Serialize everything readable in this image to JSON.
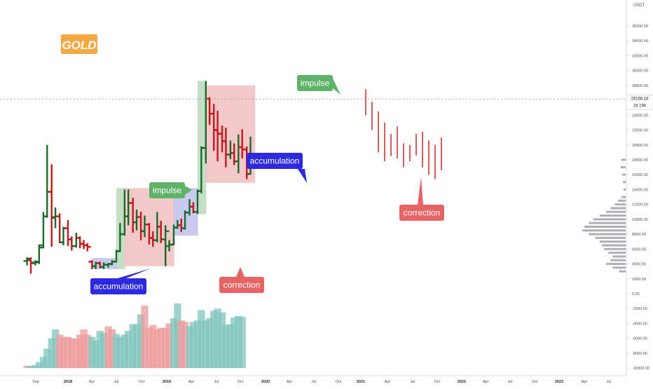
{
  "symbol_badge": "GOLD",
  "price_axis": {
    "unit": "USDT",
    "current_price": "26168.16",
    "countdown": "2d 19h",
    "ticks": [
      "36000.00",
      "34000.00",
      "32000.00",
      "30000.00",
      "28000.00",
      "26000.00",
      "24000.00",
      "22000.00",
      "20000.00",
      "18000.00",
      "16000.00",
      "14000.00",
      "12000.00",
      "10000.00",
      "8000.00",
      "6000.00",
      "4000.00",
      "2000.00",
      "0.00",
      "-2000.00",
      "-4000.00",
      "-6000.00",
      "-8000.00",
      "-10000.00"
    ]
  },
  "time_axis": {
    "ticks": [
      "Sep",
      "2018",
      "Apr",
      "Jul",
      "Oct",
      "2019",
      "Apr",
      "Jul",
      "Oct",
      "2020",
      "Apr",
      "Jul",
      "Oct",
      "2021",
      "Apr",
      "Jul",
      "Oct",
      "2022",
      "Apr",
      "Jul",
      "Oct",
      "2023",
      "Apr",
      "Jul"
    ]
  },
  "annotations": {
    "impulse": "impulse",
    "accumulation": "accumulation",
    "correction": "correction"
  },
  "colors": {
    "up": "#1a6b2a",
    "down": "#c8161b",
    "impulse_zone": "#9dc9a0",
    "correction_zone": "#eba3a3",
    "accumulation_zone": "#a3a6e6",
    "label_impulse": "#5fb369",
    "label_accumulation": "#2d29e0",
    "label_correction": "#e86464",
    "badge": "#f5a742"
  },
  "chart_data": {
    "type": "ohlc",
    "price_unit": "USDT",
    "ylim": [
      -10000,
      37500
    ],
    "bars": [
      {
        "x": "2017-08-01",
        "open": 4400,
        "high": 4900,
        "low": 3800,
        "close": 4700
      },
      {
        "x": "2017-08-15",
        "open": 4500,
        "high": 4900,
        "low": 2700,
        "close": 4100
      },
      {
        "x": "2017-09-01",
        "open": 4200,
        "high": 4500,
        "low": 3800,
        "close": 4300
      },
      {
        "x": "2017-09-15",
        "open": 4200,
        "high": 6600,
        "low": 4000,
        "close": 6500
      },
      {
        "x": "2017-10-01",
        "open": 6200,
        "high": 11000,
        "low": 6100,
        "close": 10400
      },
      {
        "x": "2017-10-15",
        "open": 10400,
        "high": 20000,
        "low": 10200,
        "close": 13700
      },
      {
        "x": "2017-11-01",
        "open": 13700,
        "high": 17400,
        "low": 6300,
        "close": 10200
      },
      {
        "x": "2017-11-15",
        "open": 10300,
        "high": 11600,
        "low": 8800,
        "close": 10400
      },
      {
        "x": "2017-12-01",
        "open": 10400,
        "high": 10800,
        "low": 6800,
        "close": 6900
      },
      {
        "x": "2017-12-15",
        "open": 6900,
        "high": 9000,
        "low": 6500,
        "close": 8800
      },
      {
        "x": "2018-01-01",
        "open": 8800,
        "high": 9900,
        "low": 6400,
        "close": 7300
      },
      {
        "x": "2018-01-15",
        "open": 7300,
        "high": 7700,
        "low": 5800,
        "close": 6400
      },
      {
        "x": "2018-02-01",
        "open": 6400,
        "high": 8200,
        "low": 6200,
        "close": 7500
      },
      {
        "x": "2018-02-15",
        "open": 7500,
        "high": 7700,
        "low": 6100,
        "close": 6700
      },
      {
        "x": "2018-03-01",
        "open": 6700,
        "high": 7200,
        "low": 6000,
        "close": 6500
      },
      {
        "x": "2018-03-15",
        "open": 6500,
        "high": 6800,
        "low": 5700,
        "close": 6300
      },
      {
        "x": "2018-04-01",
        "open": 4300,
        "high": 4500,
        "low": 3300,
        "close": 3700
      },
      {
        "x": "2018-04-15",
        "open": 3700,
        "high": 4300,
        "low": 3300,
        "close": 4100
      },
      {
        "x": "2018-05-01",
        "open": 4100,
        "high": 4300,
        "low": 3400,
        "close": 3600
      },
      {
        "x": "2018-05-15",
        "open": 3600,
        "high": 4200,
        "low": 3300,
        "close": 3900
      },
      {
        "x": "2018-06-01",
        "open": 3900,
        "high": 4100,
        "low": 3500,
        "close": 4000
      },
      {
        "x": "2018-06-15",
        "open": 4000,
        "high": 4500,
        "low": 3800,
        "close": 4300
      },
      {
        "x": "2018-07-01",
        "open": 4300,
        "high": 5900,
        "low": 4200,
        "close": 5700
      },
      {
        "x": "2018-07-15",
        "open": 5700,
        "high": 9500,
        "low": 5600,
        "close": 8000
      },
      {
        "x": "2018-08-01",
        "open": 8000,
        "high": 14000,
        "low": 7800,
        "close": 10400
      },
      {
        "x": "2018-08-15",
        "open": 10400,
        "high": 14000,
        "low": 9200,
        "close": 12200
      },
      {
        "x": "2018-09-01",
        "open": 12200,
        "high": 12900,
        "low": 8200,
        "close": 9600
      },
      {
        "x": "2018-09-15",
        "open": 9600,
        "high": 11300,
        "low": 8500,
        "close": 10300
      },
      {
        "x": "2018-10-01",
        "open": 10300,
        "high": 11000,
        "low": 7200,
        "close": 8400
      },
      {
        "x": "2018-10-15",
        "open": 8400,
        "high": 10500,
        "low": 7600,
        "close": 9300
      },
      {
        "x": "2018-11-01",
        "open": 9300,
        "high": 9500,
        "low": 6600,
        "close": 7500
      },
      {
        "x": "2018-11-15",
        "open": 7500,
        "high": 8400,
        "low": 6300,
        "close": 7200
      },
      {
        "x": "2018-12-01",
        "open": 7200,
        "high": 11000,
        "low": 6900,
        "close": 9000
      },
      {
        "x": "2018-12-15",
        "open": 9000,
        "high": 9800,
        "low": 6800,
        "close": 7300
      },
      {
        "x": "2019-01-01",
        "open": 7300,
        "high": 9200,
        "low": 3700,
        "close": 8400
      },
      {
        "x": "2019-01-15",
        "open": 6400,
        "high": 7200,
        "low": 5700,
        "close": 6600
      },
      {
        "x": "2019-02-01",
        "open": 6600,
        "high": 9300,
        "low": 6500,
        "close": 8900
      },
      {
        "x": "2019-02-15",
        "open": 8900,
        "high": 9900,
        "low": 8700,
        "close": 9200
      },
      {
        "x": "2019-03-01",
        "open": 9200,
        "high": 10100,
        "low": 8300,
        "close": 8800
      },
      {
        "x": "2019-03-15",
        "open": 8800,
        "high": 11200,
        "low": 8600,
        "close": 10900
      },
      {
        "x": "2019-04-01",
        "open": 10900,
        "high": 12700,
        "low": 10500,
        "close": 11700
      },
      {
        "x": "2019-04-15",
        "open": 11700,
        "high": 12300,
        "low": 10800,
        "close": 11000
      },
      {
        "x": "2019-05-01",
        "open": 11000,
        "high": 14000,
        "low": 10700,
        "close": 13800
      },
      {
        "x": "2019-05-15",
        "open": 13800,
        "high": 19800,
        "low": 13500,
        "close": 19600
      },
      {
        "x": "2019-06-01",
        "open": 19600,
        "high": 28600,
        "low": 17500,
        "close": 26200
      },
      {
        "x": "2019-06-15",
        "open": 26200,
        "high": 26400,
        "low": 22700,
        "close": 24200
      },
      {
        "x": "2019-07-01",
        "open": 24200,
        "high": 25500,
        "low": 19200,
        "close": 22000
      },
      {
        "x": "2019-07-15",
        "open": 22000,
        "high": 24600,
        "low": 17800,
        "close": 21500
      },
      {
        "x": "2019-08-01",
        "open": 21500,
        "high": 22600,
        "low": 19000,
        "close": 20500
      },
      {
        "x": "2019-08-15",
        "open": 20500,
        "high": 22300,
        "low": 17000,
        "close": 18700
      },
      {
        "x": "2019-09-01",
        "open": 18700,
        "high": 20600,
        "low": 18100,
        "close": 18900
      },
      {
        "x": "2019-09-15",
        "open": 18900,
        "high": 20200,
        "low": 17300,
        "close": 17800
      },
      {
        "x": "2019-10-01",
        "open": 17800,
        "high": 21400,
        "low": 16200,
        "close": 19700
      },
      {
        "x": "2019-10-15",
        "open": 19700,
        "high": 22100,
        "low": 18200,
        "close": 19400
      },
      {
        "x": "2019-11-01",
        "open": 19400,
        "high": 19800,
        "low": 15400,
        "close": 16100
      },
      {
        "x": "2019-11-15",
        "open": 16100,
        "high": 21100,
        "low": 16000,
        "close": 18200
      }
    ],
    "volume": [
      {
        "x": "2017-08-01",
        "v": -9700,
        "dir": "down"
      },
      {
        "x": "2017-08-15",
        "v": -9700,
        "dir": "up"
      },
      {
        "x": "2017-09-01",
        "v": -9600,
        "dir": "up"
      },
      {
        "x": "2017-09-15",
        "v": -9200,
        "dir": "up"
      },
      {
        "x": "2017-10-01",
        "v": -8500,
        "dir": "up"
      },
      {
        "x": "2017-10-15",
        "v": -7400,
        "dir": "up"
      },
      {
        "x": "2017-11-01",
        "v": -6000,
        "dir": "up"
      },
      {
        "x": "2017-11-15",
        "v": -4800,
        "dir": "up"
      },
      {
        "x": "2017-12-01",
        "v": -5500,
        "dir": "down"
      },
      {
        "x": "2017-12-15",
        "v": -5800,
        "dir": "down"
      },
      {
        "x": "2018-01-01",
        "v": -5800,
        "dir": "down"
      },
      {
        "x": "2018-01-15",
        "v": -6000,
        "dir": "down"
      },
      {
        "x": "2018-02-01",
        "v": -6000,
        "dir": "down"
      },
      {
        "x": "2018-02-15",
        "v": -5500,
        "dir": "down"
      },
      {
        "x": "2018-03-01",
        "v": -4800,
        "dir": "down"
      },
      {
        "x": "2018-03-15",
        "v": -5500,
        "dir": "down"
      },
      {
        "x": "2018-04-01",
        "v": -5800,
        "dir": "up"
      },
      {
        "x": "2018-04-15",
        "v": -6300,
        "dir": "up"
      },
      {
        "x": "2018-05-01",
        "v": -5000,
        "dir": "up"
      },
      {
        "x": "2018-05-15",
        "v": -5300,
        "dir": "up"
      },
      {
        "x": "2018-06-01",
        "v": -4400,
        "dir": "down"
      },
      {
        "x": "2018-06-15",
        "v": -4800,
        "dir": "down"
      },
      {
        "x": "2018-07-01",
        "v": -5400,
        "dir": "up"
      },
      {
        "x": "2018-07-15",
        "v": -5800,
        "dir": "up"
      },
      {
        "x": "2018-08-01",
        "v": -5500,
        "dir": "up"
      },
      {
        "x": "2018-08-15",
        "v": -5000,
        "dir": "up"
      },
      {
        "x": "2018-09-01",
        "v": -4100,
        "dir": "up"
      },
      {
        "x": "2018-09-15",
        "v": -4100,
        "dir": "up"
      },
      {
        "x": "2018-10-01",
        "v": -2800,
        "dir": "up"
      },
      {
        "x": "2018-10-15",
        "v": -1600,
        "dir": "down"
      },
      {
        "x": "2018-11-01",
        "v": -4600,
        "dir": "down"
      },
      {
        "x": "2018-11-15",
        "v": -4200,
        "dir": "down"
      },
      {
        "x": "2018-12-01",
        "v": -4800,
        "dir": "down"
      },
      {
        "x": "2018-12-15",
        "v": -4600,
        "dir": "down"
      },
      {
        "x": "2019-01-01",
        "v": -4600,
        "dir": "down"
      },
      {
        "x": "2019-01-15",
        "v": -4000,
        "dir": "down"
      },
      {
        "x": "2019-02-01",
        "v": -3300,
        "dir": "up"
      },
      {
        "x": "2019-02-15",
        "v": -1300,
        "dir": "up"
      },
      {
        "x": "2019-03-01",
        "v": -3600,
        "dir": "down"
      },
      {
        "x": "2019-03-15",
        "v": -3800,
        "dir": "down"
      },
      {
        "x": "2019-04-01",
        "v": -4400,
        "dir": "up"
      },
      {
        "x": "2019-04-15",
        "v": -3800,
        "dir": "up"
      },
      {
        "x": "2019-05-01",
        "v": -3600,
        "dir": "up"
      },
      {
        "x": "2019-05-15",
        "v": -2200,
        "dir": "up"
      },
      {
        "x": "2019-06-01",
        "v": -3600,
        "dir": "up"
      },
      {
        "x": "2019-06-15",
        "v": -3300,
        "dir": "up"
      },
      {
        "x": "2019-07-01",
        "v": -2300,
        "dir": "up"
      },
      {
        "x": "2019-07-15",
        "v": -2000,
        "dir": "up"
      },
      {
        "x": "2019-08-01",
        "v": -2500,
        "dir": "up"
      },
      {
        "x": "2019-08-15",
        "v": -4200,
        "dir": "up"
      },
      {
        "x": "2019-09-01",
        "v": -4100,
        "dir": "up"
      },
      {
        "x": "2019-09-15",
        "v": -3200,
        "dir": "up"
      },
      {
        "x": "2019-10-01",
        "v": -3000,
        "dir": "up"
      },
      {
        "x": "2019-10-15",
        "v": -3100,
        "dir": "up"
      }
    ],
    "volume_profile": [
      {
        "price": 18000,
        "v": 0.1
      },
      {
        "price": 17000,
        "v": 0.12
      },
      {
        "price": 16000,
        "v": 0.08
      },
      {
        "price": 15000,
        "v": 0.06
      },
      {
        "price": 14000,
        "v": 0.05
      },
      {
        "price": 13000,
        "v": 0.1
      },
      {
        "price": 12500,
        "v": 0.18
      },
      {
        "price": 12000,
        "v": 0.25
      },
      {
        "price": 11500,
        "v": 0.35
      },
      {
        "price": 11000,
        "v": 0.45
      },
      {
        "price": 10500,
        "v": 0.6
      },
      {
        "price": 10000,
        "v": 0.75
      },
      {
        "price": 9500,
        "v": 0.85
      },
      {
        "price": 9000,
        "v": 0.95
      },
      {
        "price": 8500,
        "v": 1.0
      },
      {
        "price": 8000,
        "v": 0.85
      },
      {
        "price": 7500,
        "v": 0.7
      },
      {
        "price": 7000,
        "v": 0.6
      },
      {
        "price": 6500,
        "v": 0.55
      },
      {
        "price": 6000,
        "v": 0.5
      },
      {
        "price": 5500,
        "v": 0.4
      },
      {
        "price": 5000,
        "v": 0.3
      },
      {
        "price": 4500,
        "v": 0.35
      },
      {
        "price": 4000,
        "v": 0.45
      },
      {
        "price": 3500,
        "v": 0.3
      },
      {
        "price": 3000,
        "v": 0.15
      }
    ],
    "zones": [
      {
        "type": "accumulation",
        "from": "2018-04-01",
        "to": "2018-06-30",
        "low": 3300,
        "high": 4800
      },
      {
        "type": "impulse",
        "from": "2018-07-01",
        "to": "2018-07-31",
        "low": 3300,
        "high": 14200
      },
      {
        "type": "correction",
        "from": "2018-08-01",
        "to": "2019-01-31",
        "low": 3700,
        "high": 14200
      },
      {
        "type": "accumulation",
        "from": "2019-02-01",
        "to": "2019-04-30",
        "low": 7800,
        "high": 14200
      },
      {
        "type": "impulse",
        "from": "2019-05-01",
        "to": "2019-05-31",
        "low": 10700,
        "high": 28600
      },
      {
        "type": "correction",
        "from": "2019-06-01",
        "to": "2019-11-30",
        "low": 14900,
        "high": 28000
      }
    ]
  }
}
